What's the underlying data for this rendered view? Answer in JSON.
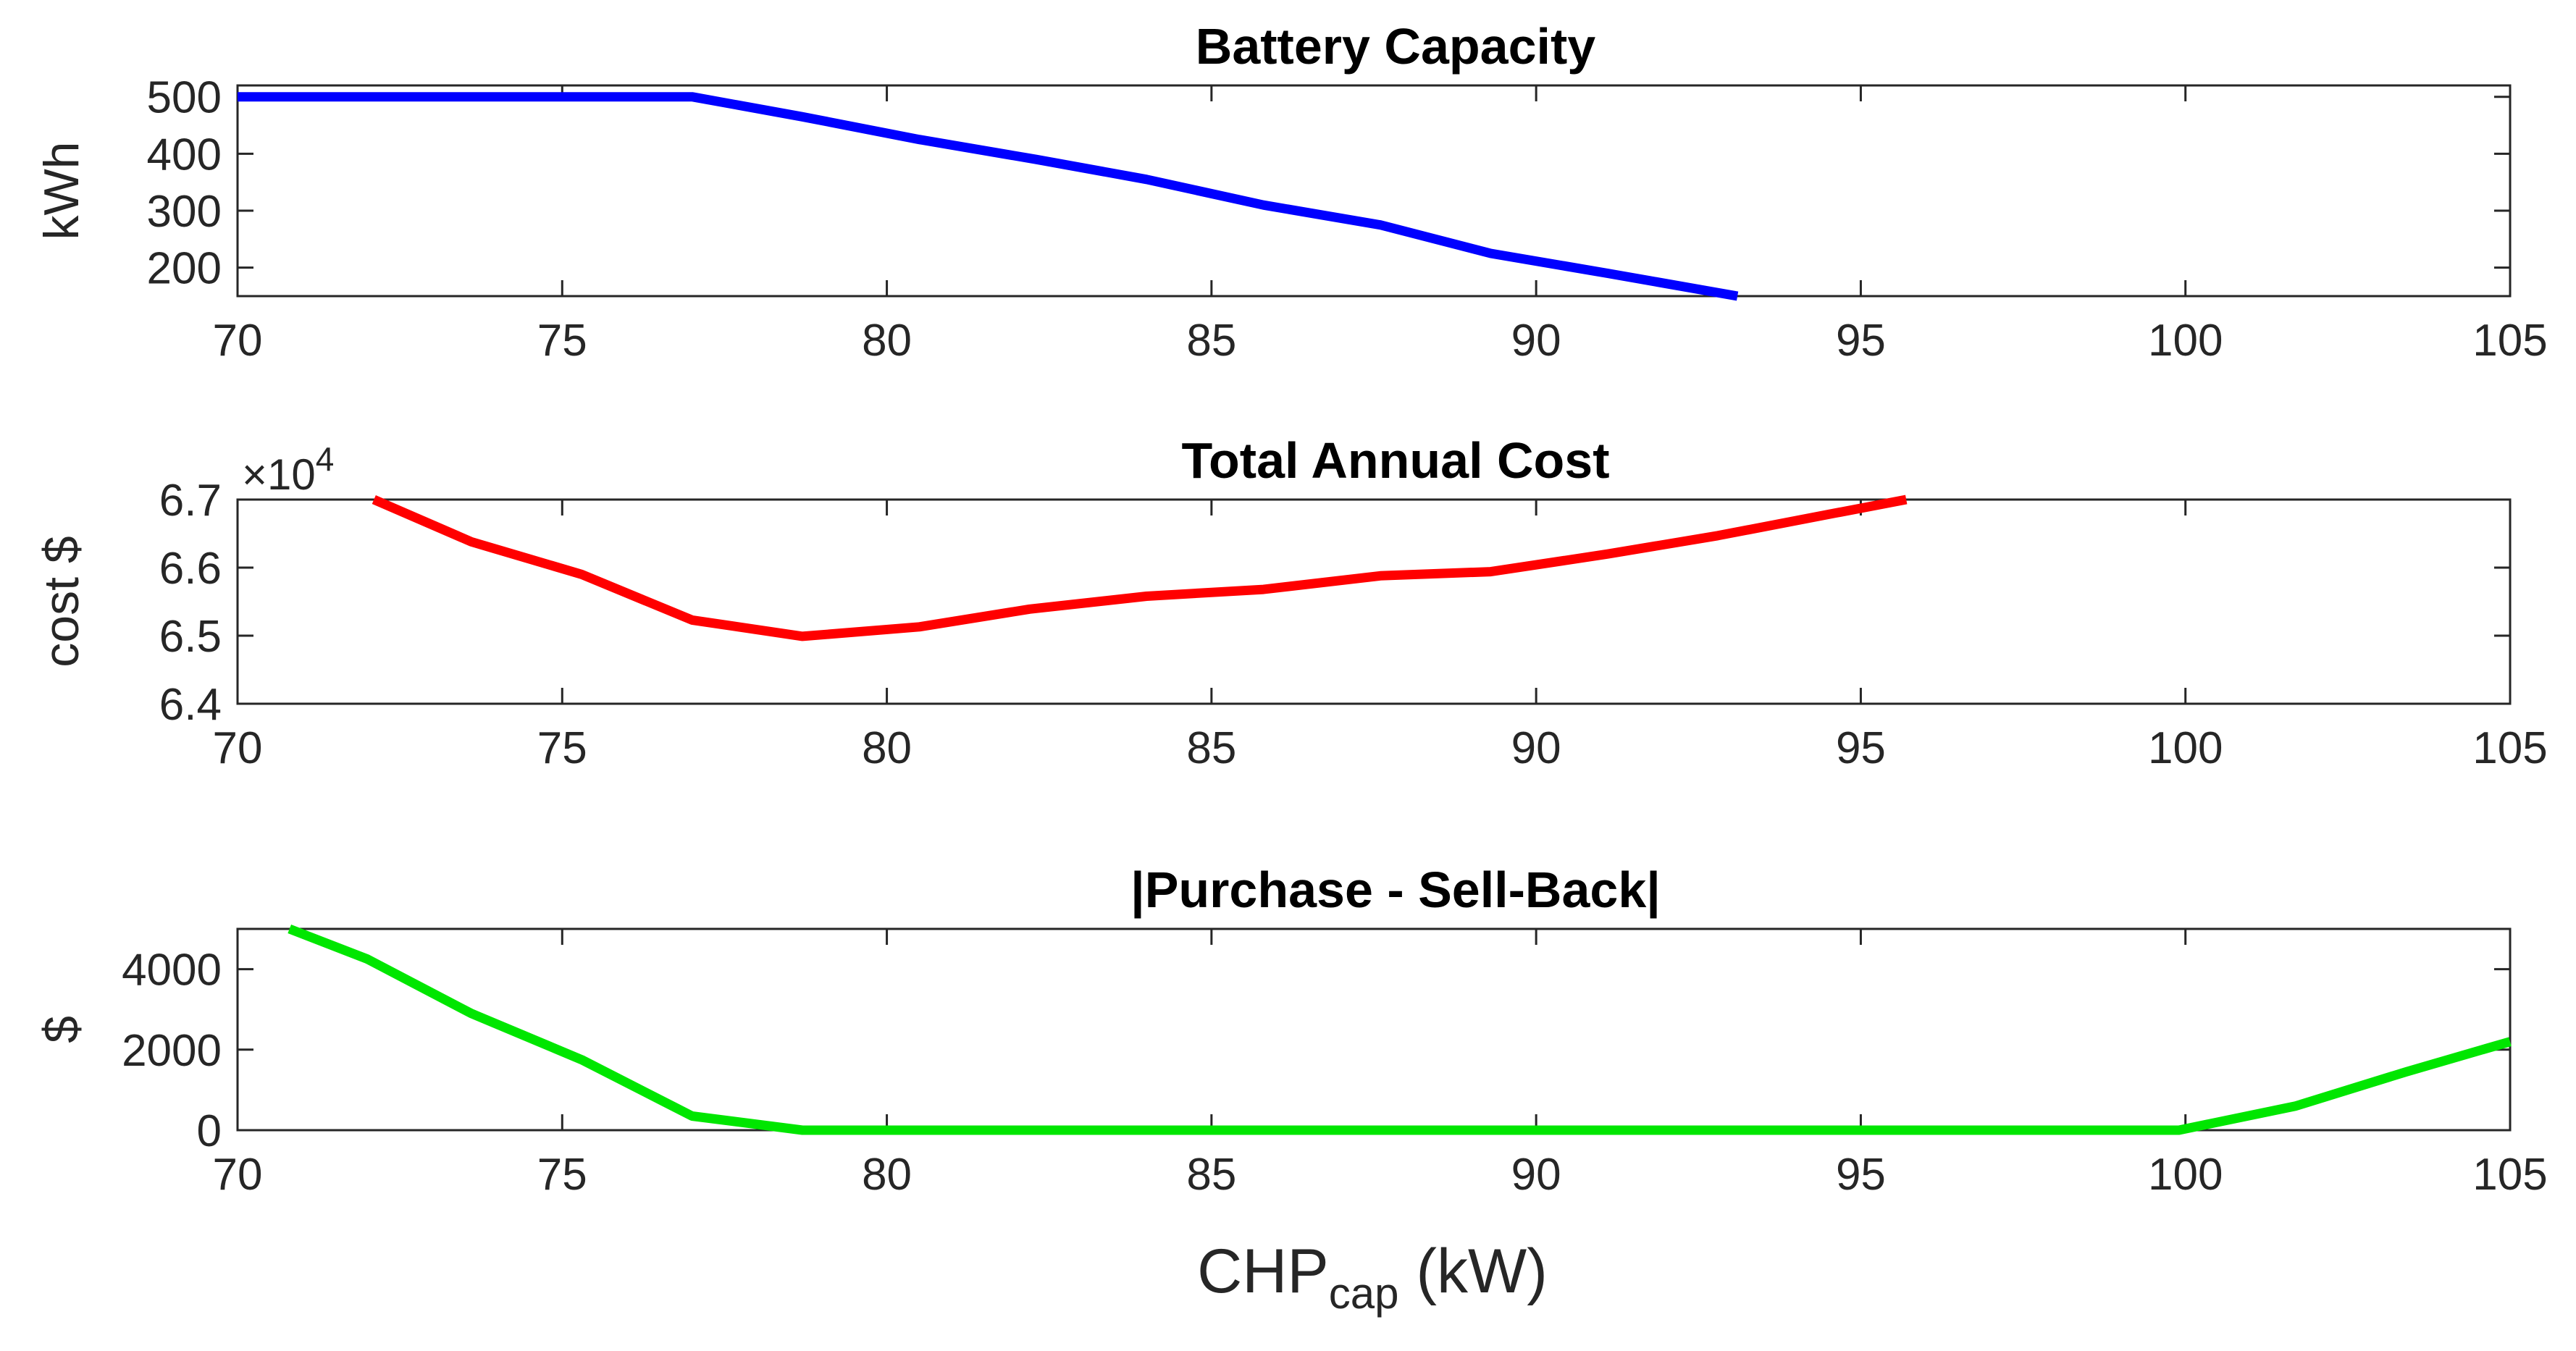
{
  "xlabel": {
    "main": "CHP",
    "sub": "cap",
    "unit": " (kW)"
  },
  "chart_data": [
    {
      "type": "line",
      "title": "Battery Capacity",
      "ylabel": "kWh",
      "xlim": [
        70,
        105
      ],
      "ylim": [
        150,
        520
      ],
      "xticks": [
        70,
        75,
        80,
        85,
        90,
        95,
        100,
        105
      ],
      "yticks": [
        200,
        300,
        400,
        500
      ],
      "ytick_labels": [
        "200",
        "300",
        "400",
        "500"
      ],
      "exponent_label": "",
      "color": "#0000ff",
      "x": [
        70,
        72,
        74,
        75.5,
        77,
        78.7,
        80.5,
        82.3,
        84,
        85.8,
        87.6,
        89.3,
        91.1,
        93.1
      ],
      "y": [
        500,
        500,
        500,
        500,
        500,
        465,
        425,
        390,
        355,
        310,
        275,
        225,
        190,
        150
      ]
    },
    {
      "type": "line",
      "title": "Total Annual Cost",
      "ylabel": "cost $",
      "xlim": [
        70,
        105
      ],
      "ylim": [
        64000,
        67000
      ],
      "xticks": [
        70,
        75,
        80,
        85,
        90,
        95,
        100,
        105
      ],
      "yticks": [
        64000,
        65000,
        66000,
        67000
      ],
      "ytick_labels": [
        "6.4",
        "6.5",
        "6.6",
        "6.7"
      ],
      "exponent_label": "×10",
      "exponent_power": "4",
      "color": "#ff0000",
      "x": [
        72.1,
        73.6,
        75.3,
        77,
        78.7,
        80.5,
        82.2,
        84,
        85.8,
        87.6,
        89.3,
        91.1,
        92.8,
        94.6,
        95.7
      ],
      "y": [
        67000,
        66380,
        65900,
        65230,
        64990,
        65130,
        65390,
        65580,
        65680,
        65880,
        65940,
        66200,
        66470,
        66800,
        67000
      ]
    },
    {
      "type": "line",
      "title": "|Purchase - Sell-Back|",
      "ylabel": "$",
      "xlim": [
        70,
        105
      ],
      "ylim": [
        0,
        5000
      ],
      "xticks": [
        70,
        75,
        80,
        85,
        90,
        95,
        100,
        105
      ],
      "yticks": [
        0,
        2000,
        4000
      ],
      "ytick_labels": [
        "0",
        "2000",
        "4000"
      ],
      "exponent_label": "",
      "color": "#00e600",
      "x": [
        70.8,
        72,
        73.6,
        75.3,
        77,
        78.7,
        80.5,
        85,
        90,
        95,
        99.9,
        101.7,
        103.4,
        105
      ],
      "y": [
        5000,
        4250,
        2900,
        1750,
        350,
        0,
        0,
        0,
        0,
        0,
        0,
        600,
        1450,
        2200
      ]
    }
  ]
}
